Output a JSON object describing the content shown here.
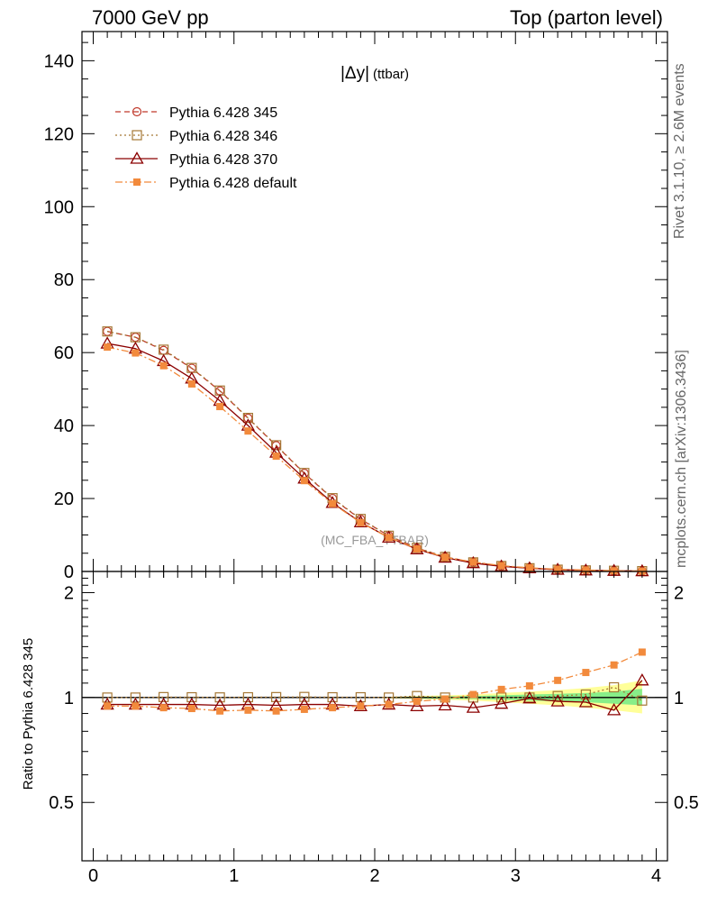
{
  "header": {
    "left": "7000 GeV pp",
    "right": "Top (parton level)"
  },
  "side_labels": {
    "rivet": "Rivet 3.1.10, ≥ 2.6M events",
    "mcplots": "mcplots.cern.ch [arXiv:1306.3436]"
  },
  "chart_data": [
    {
      "type": "line",
      "title": "|Δy| (ttbar)",
      "title_main": "|Δy|",
      "title_sub": "(ttbar)",
      "watermark": "(MC_FBA_TTBAR)",
      "xlabel": "",
      "ylabel": "",
      "xlim": [
        -0.08,
        4.08
      ],
      "ylim": [
        0,
        148
      ],
      "xticks": [
        0,
        1,
        2,
        3,
        4
      ],
      "yticks": [
        0,
        20,
        40,
        60,
        80,
        100,
        120,
        140
      ],
      "grid": false,
      "legend_position": "top-left",
      "x": [
        0.1,
        0.3,
        0.5,
        0.7,
        0.9,
        1.1,
        1.3,
        1.5,
        1.7,
        1.9,
        2.1,
        2.3,
        2.5,
        2.7,
        2.9,
        3.1,
        3.3,
        3.5,
        3.7,
        3.9
      ],
      "series": [
        {
          "name": "Pythia 6.428 345",
          "color": "#c0392b",
          "marker": "circle",
          "dash": "6,4",
          "values": [
            65.8,
            64.2,
            60.6,
            55.7,
            49.5,
            42.0,
            34.5,
            26.9,
            20.0,
            14.3,
            9.8,
            6.4,
            4.0,
            2.5,
            1.5,
            0.9,
            0.5,
            0.3,
            0.2,
            0.1
          ]
        },
        {
          "name": "Pythia 6.428 346",
          "color": "#a57735",
          "marker": "square",
          "dash": "2,3",
          "values": [
            65.8,
            64.2,
            60.8,
            55.8,
            49.6,
            42.1,
            34.6,
            27.0,
            20.1,
            14.4,
            9.8,
            6.5,
            4.0,
            2.5,
            1.5,
            0.9,
            0.5,
            0.3,
            0.2,
            0.1
          ]
        },
        {
          "name": "Pythia 6.428 370",
          "color": "#8b0000",
          "marker": "triangle",
          "dash": "",
          "values": [
            62.5,
            61.1,
            57.7,
            52.9,
            46.8,
            40.0,
            32.6,
            25.5,
            18.8,
            13.5,
            9.3,
            6.1,
            3.8,
            2.3,
            1.4,
            0.9,
            0.5,
            0.3,
            0.2,
            0.1
          ]
        },
        {
          "name": "Pythia 6.428 default",
          "color": "#f28a3c",
          "marker": "filled-square",
          "dash": "8,3,2,3",
          "values": [
            61.5,
            59.9,
            56.4,
            51.4,
            45.2,
            38.5,
            31.6,
            24.9,
            18.6,
            13.4,
            9.3,
            6.2,
            3.9,
            2.6,
            1.6,
            1.0,
            0.6,
            0.4,
            0.2,
            0.1
          ]
        }
      ]
    },
    {
      "type": "line",
      "title": "",
      "xlabel": "",
      "ylabel": "Ratio to Pythia 6.428 345",
      "xlim": [
        -0.08,
        4.08
      ],
      "ylim": [
        0.34,
        2.3
      ],
      "xticks": [
        0,
        1,
        2,
        3,
        4
      ],
      "yticks": [
        0.5,
        1,
        2
      ],
      "reference_line": 1,
      "x": [
        0.1,
        0.3,
        0.5,
        0.7,
        0.9,
        1.1,
        1.3,
        1.5,
        1.7,
        1.9,
        2.1,
        2.3,
        2.5,
        2.7,
        2.9,
        3.1,
        3.3,
        3.5,
        3.7,
        3.9
      ],
      "bands": [
        {
          "name": "yellow",
          "color": "#ffff99",
          "low": [
            1.0,
            1.0,
            1.0,
            1.0,
            1.0,
            1.0,
            1.0,
            1.0,
            1.0,
            1.0,
            0.995,
            0.99,
            0.985,
            0.98,
            0.97,
            0.96,
            0.95,
            0.935,
            0.92,
            0.9
          ],
          "high": [
            1.0,
            1.0,
            1.0,
            1.0,
            1.0,
            1.0,
            1.0,
            1.0,
            1.0,
            1.0,
            1.005,
            1.01,
            1.015,
            1.02,
            1.03,
            1.04,
            1.05,
            1.065,
            1.085,
            1.12
          ]
        },
        {
          "name": "green",
          "color": "#88ee88",
          "low": [
            1.0,
            1.0,
            1.0,
            1.0,
            1.0,
            1.0,
            1.0,
            1.0,
            1.0,
            1.0,
            0.998,
            0.995,
            0.992,
            0.99,
            0.985,
            0.98,
            0.975,
            0.97,
            0.96,
            0.95
          ],
          "high": [
            1.0,
            1.0,
            1.0,
            1.0,
            1.0,
            1.0,
            1.0,
            1.0,
            1.0,
            1.0,
            1.002,
            1.005,
            1.008,
            1.01,
            1.015,
            1.02,
            1.025,
            1.03,
            1.04,
            1.06
          ]
        }
      ],
      "series": [
        {
          "name": "Pythia 6.428 346",
          "color": "#a57735",
          "marker": "square",
          "dash": "2,3",
          "values": [
            1.0,
            1.0,
            1.003,
            1.002,
            1.001,
            1.002,
            1.003,
            1.004,
            1.002,
            1.002,
            1.0,
            1.01,
            1.0,
            1.0,
            1.0,
            1.0,
            1.01,
            1.02,
            1.07,
            0.98
          ]
        },
        {
          "name": "Pythia 6.428 370",
          "color": "#8b0000",
          "marker": "triangle",
          "dash": "",
          "values": [
            0.955,
            0.955,
            0.955,
            0.955,
            0.95,
            0.955,
            0.95,
            0.955,
            0.955,
            0.945,
            0.955,
            0.945,
            0.95,
            0.935,
            0.96,
            0.995,
            0.975,
            0.97,
            0.92,
            1.12
          ]
        },
        {
          "name": "Pythia 6.428 default",
          "color": "#f28a3c",
          "marker": "filled-square",
          "dash": "8,3,2,3",
          "values": [
            0.945,
            0.945,
            0.935,
            0.93,
            0.915,
            0.92,
            0.915,
            0.925,
            0.935,
            0.945,
            0.955,
            0.975,
            0.99,
            1.02,
            1.055,
            1.08,
            1.12,
            1.18,
            1.24,
            1.35
          ]
        }
      ]
    }
  ]
}
